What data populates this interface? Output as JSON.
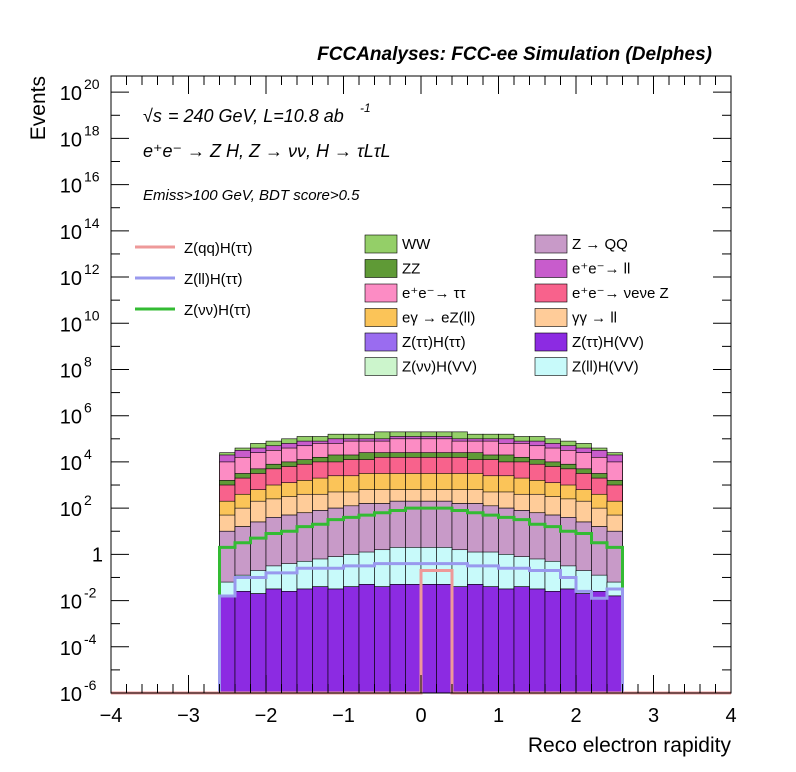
{
  "header": {
    "title": "FCCAnalyses: FCC-ee Simulation (Delphes)"
  },
  "annotations": {
    "energy": "= 240 GeV, L=10.8 ab",
    "energy_prefix": "√s",
    "lumi_exp": "-1",
    "process": "e⁺e⁻ → Z H, Z → νν, H → τLτL",
    "selection": "Emiss>100 GeV, BDT score>0.5"
  },
  "chart_data": {
    "type": "histogram-stacked",
    "xlabel": "Reco electron rapidity",
    "ylabel": "Events",
    "xlim": [
      -4,
      4
    ],
    "ylim_log10": [
      -6,
      20.7
    ],
    "log_y": true,
    "x_ticks": [
      "−4",
      "−3",
      "−2",
      "−1",
      "0",
      "1",
      "2",
      "3",
      "4"
    ],
    "y_ticks": [
      {
        "base": "10",
        "exp": "20",
        "log": 20
      },
      {
        "base": "10",
        "exp": "18",
        "log": 18
      },
      {
        "base": "10",
        "exp": "16",
        "log": 16
      },
      {
        "base": "10",
        "exp": "14",
        "log": 14
      },
      {
        "base": "10",
        "exp": "12",
        "log": 12
      },
      {
        "base": "10",
        "exp": "10",
        "log": 10
      },
      {
        "base": "10",
        "exp": "8",
        "log": 8
      },
      {
        "base": "10",
        "exp": "6",
        "log": 6
      },
      {
        "base": "10",
        "exp": "4",
        "log": 4
      },
      {
        "base": "10",
        "exp": "2",
        "log": 2
      },
      {
        "base": "1",
        "exp": "",
        "log": 0
      },
      {
        "base": "10",
        "exp": "-2",
        "log": -2
      },
      {
        "base": "10",
        "exp": "-4",
        "log": -4
      },
      {
        "base": "10",
        "exp": "-6",
        "log": -6
      }
    ],
    "bin_edges": [
      -2.6,
      -2.4,
      -2.2,
      -2.0,
      -1.8,
      -1.6,
      -1.4,
      -1.2,
      -1.0,
      -0.8,
      -0.6,
      -0.4,
      -0.2,
      0.0,
      0.2,
      0.4,
      0.6,
      0.8,
      1.0,
      1.2,
      1.4,
      1.6,
      1.8,
      2.0,
      2.2,
      2.4,
      2.6
    ],
    "stack_log10_tops": [
      {
        "name": "Z(ττ)H(VV)",
        "color": "#8c2be2",
        "values": [
          -1.8,
          -1.6,
          -1.7,
          -1.5,
          -1.6,
          -1.5,
          -1.4,
          -1.5,
          -1.4,
          -1.3,
          -1.4,
          -1.3,
          -1.3,
          -1.3,
          -1.3,
          -1.4,
          -1.3,
          -1.4,
          -1.5,
          -1.4,
          -1.5,
          -1.6,
          -1.5,
          -1.7,
          -1.6,
          -1.8
        ]
      },
      {
        "name": "Z(ττ)H(ττ)",
        "color": "#9a6cf0",
        "values": [
          -1.8,
          -1.6,
          -1.7,
          -1.5,
          -1.6,
          -1.5,
          -1.4,
          -1.5,
          -1.4,
          -1.3,
          -1.4,
          -1.3,
          -1.3,
          -1.3,
          -1.3,
          -1.4,
          -1.3,
          -1.4,
          -1.5,
          -1.4,
          -1.5,
          -1.6,
          -1.5,
          -1.7,
          -1.6,
          -1.8
        ]
      },
      {
        "name": "Z(ll)H(VV)",
        "color": "#c8fafa",
        "values": [
          -1.2,
          -0.9,
          -0.7,
          -0.5,
          -0.4,
          -0.3,
          -0.2,
          -0.1,
          0.0,
          0.1,
          0.2,
          0.3,
          0.3,
          0.3,
          0.3,
          0.2,
          0.1,
          0.1,
          0.0,
          -0.1,
          -0.2,
          -0.3,
          -0.5,
          -0.7,
          -0.9,
          -1.2
        ]
      },
      {
        "name": "Z → QQ",
        "color": "#c89ac8",
        "values": [
          1.0,
          1.2,
          1.4,
          1.6,
          1.7,
          1.8,
          1.9,
          2.0,
          2.1,
          2.2,
          2.2,
          2.3,
          2.3,
          2.3,
          2.3,
          2.2,
          2.2,
          2.1,
          2.0,
          1.9,
          1.8,
          1.7,
          1.6,
          1.4,
          1.2,
          1.0
        ]
      },
      {
        "name": "Z(νν)H(VV)",
        "color": "#ccf5cc",
        "values": [
          1.0,
          1.2,
          1.4,
          1.6,
          1.7,
          1.8,
          1.9,
          2.0,
          2.1,
          2.2,
          2.2,
          2.3,
          2.3,
          2.3,
          2.3,
          2.2,
          2.2,
          2.1,
          2.0,
          1.9,
          1.8,
          1.7,
          1.6,
          1.4,
          1.2,
          1.0
        ]
      },
      {
        "name": "γγ → ll",
        "color": "#ffcc99",
        "values": [
          1.7,
          2.0,
          2.3,
          2.4,
          2.5,
          2.6,
          2.6,
          2.7,
          2.7,
          2.8,
          2.8,
          2.8,
          2.8,
          2.8,
          2.8,
          2.8,
          2.8,
          2.7,
          2.7,
          2.6,
          2.6,
          2.5,
          2.4,
          2.3,
          2.0,
          1.7
        ]
      },
      {
        "name": "eγ → eZ(ll)",
        "color": "#fbc458",
        "values": [
          2.3,
          2.6,
          2.8,
          3.0,
          3.1,
          3.2,
          3.3,
          3.4,
          3.4,
          3.5,
          3.5,
          3.5,
          3.5,
          3.5,
          3.5,
          3.5,
          3.5,
          3.4,
          3.4,
          3.3,
          3.2,
          3.1,
          3.0,
          2.8,
          2.6,
          2.3
        ]
      },
      {
        "name": "e⁺e⁻ → νeνe Z",
        "color": "#f8628c",
        "values": [
          3.0,
          3.3,
          3.5,
          3.7,
          3.8,
          3.9,
          4.0,
          4.0,
          4.1,
          4.1,
          4.2,
          4.2,
          4.2,
          4.2,
          4.2,
          4.2,
          4.1,
          4.1,
          4.0,
          4.0,
          3.9,
          3.8,
          3.7,
          3.5,
          3.3,
          3.0
        ]
      },
      {
        "name": "ZZ",
        "color": "#5f9a36",
        "values": [
          3.2,
          3.5,
          3.7,
          3.9,
          4.0,
          4.1,
          4.2,
          4.3,
          4.3,
          4.4,
          4.4,
          4.4,
          4.4,
          4.4,
          4.4,
          4.4,
          4.4,
          4.3,
          4.3,
          4.2,
          4.1,
          4.0,
          3.9,
          3.7,
          3.5,
          3.2
        ]
      },
      {
        "name": "e⁺e⁻ → ττ",
        "color": "#fc8cc4",
        "values": [
          4.0,
          4.2,
          4.4,
          4.5,
          4.6,
          4.7,
          4.8,
          4.8,
          4.9,
          4.9,
          4.9,
          5.0,
          5.0,
          5.0,
          5.0,
          4.9,
          4.9,
          4.9,
          4.8,
          4.8,
          4.7,
          4.6,
          4.5,
          4.4,
          4.2,
          4.0
        ]
      },
      {
        "name": "e⁺e⁻ → ll",
        "color": "#c85ccc",
        "values": [
          4.3,
          4.5,
          4.6,
          4.7,
          4.8,
          4.9,
          4.9,
          5.0,
          5.0,
          5.0,
          5.0,
          5.1,
          5.1,
          5.1,
          5.1,
          5.0,
          5.0,
          5.0,
          5.0,
          4.9,
          4.9,
          4.8,
          4.7,
          4.6,
          4.5,
          4.3
        ]
      },
      {
        "name": "WW",
        "color": "#94cf68",
        "values": [
          4.4,
          4.6,
          4.8,
          4.9,
          5.0,
          5.1,
          5.1,
          5.2,
          5.2,
          5.2,
          5.3,
          5.3,
          5.3,
          5.3,
          5.3,
          5.3,
          5.2,
          5.2,
          5.2,
          5.1,
          5.1,
          5.0,
          4.9,
          4.8,
          4.6,
          4.4
        ]
      }
    ],
    "lines": [
      {
        "name": "Z(νν)H(ττ)",
        "color": "#33bb33",
        "values": [
          0.3,
          0.5,
          0.7,
          0.9,
          1.0,
          1.2,
          1.3,
          1.5,
          1.6,
          1.7,
          1.8,
          1.9,
          2.0,
          2.0,
          2.0,
          1.9,
          1.8,
          1.7,
          1.6,
          1.5,
          1.3,
          1.2,
          1.0,
          0.9,
          0.5,
          0.3
        ]
      },
      {
        "name": "Z(ll)H(ττ)",
        "color": "#9999ee",
        "values": [
          -1.8,
          -1.0,
          -1.0,
          -0.8,
          -0.8,
          -0.6,
          -0.6,
          -0.6,
          -0.5,
          -0.5,
          -0.4,
          -0.4,
          -0.4,
          -0.4,
          -0.4,
          -0.4,
          -0.5,
          -0.5,
          -0.6,
          -0.6,
          -0.7,
          -0.7,
          -1.0,
          -1.6,
          -1.9,
          -1.5
        ]
      },
      {
        "name": "Z(qq)H(ττ)",
        "color": "#ee9999",
        "values": [
          null,
          null,
          null,
          null,
          null,
          null,
          null,
          null,
          null,
          null,
          null,
          null,
          null,
          -0.7,
          -0.7,
          null,
          null,
          null,
          null,
          null,
          null,
          null,
          null,
          null,
          null,
          null
        ]
      }
    ],
    "legend_lines": [
      {
        "name": "Z(qq)H(ττ)",
        "color": "#ee9999"
      },
      {
        "name": "Z(ll)H(ττ)",
        "color": "#9999ee"
      },
      {
        "name": "Z(νν)H(ττ)",
        "color": "#33bb33"
      }
    ],
    "legend_fills": [
      {
        "name": "WW",
        "color": "#94cf68"
      },
      {
        "name": "Z → QQ",
        "color": "#c89ac8"
      },
      {
        "name": "ZZ",
        "color": "#5f9a36"
      },
      {
        "name": "e⁺e⁻→ ll",
        "color": "#c85ccc"
      },
      {
        "name": "e⁺e⁻→ ττ",
        "color": "#fc8cc4"
      },
      {
        "name": "e⁺e⁻→ νeνe Z",
        "color": "#f8628c"
      },
      {
        "name": "eγ → eZ(ll)",
        "color": "#fbc458"
      },
      {
        "name": "γγ → ll",
        "color": "#ffcc99"
      },
      {
        "name": "Z(ττ)H(ττ)",
        "color": "#9a6cf0"
      },
      {
        "name": "Z(ττ)H(VV)",
        "color": "#8c2be2"
      },
      {
        "name": "Z(νν)H(VV)",
        "color": "#ccf5cc"
      },
      {
        "name": "Z(ll)H(VV)",
        "color": "#c8fafa"
      }
    ]
  }
}
